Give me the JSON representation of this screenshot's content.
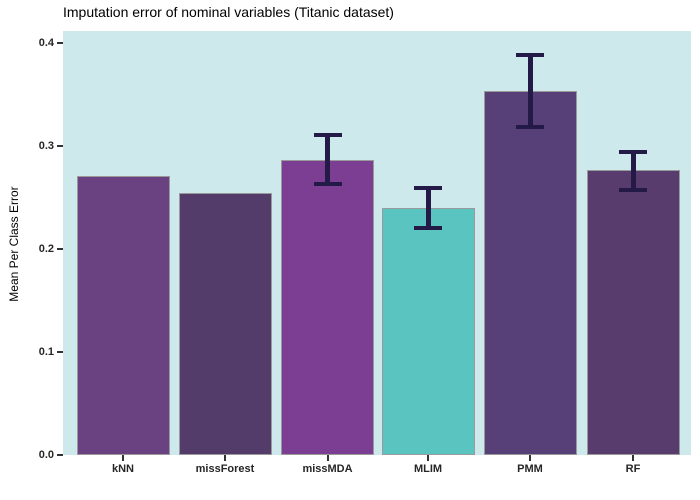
{
  "chart_data": {
    "type": "bar",
    "title": "Imputation error of nominal variables (Titanic dataset)",
    "xlabel": "",
    "ylabel": "Mean Per Class Error",
    "categories": [
      "kNN",
      "missForest",
      "missMDA",
      "MLIM",
      "PMM",
      "RF"
    ],
    "values": [
      0.271,
      0.255,
      0.287,
      0.24,
      0.354,
      0.277
    ],
    "error_bars": [
      null,
      null,
      {
        "low": 0.261,
        "high": 0.313
      },
      {
        "low": 0.219,
        "high": 0.261
      },
      {
        "low": 0.317,
        "high": 0.391
      },
      {
        "low": 0.256,
        "high": 0.296
      }
    ],
    "y_ticks": [
      0.0,
      0.1,
      0.2,
      0.3,
      0.4
    ],
    "y_tick_labels": [
      "0.0",
      "0.1",
      "0.2",
      "0.3",
      "0.4"
    ],
    "ylim": [
      0,
      0.412
    ],
    "grid": false,
    "legend_position": "none",
    "colors": {
      "bars": [
        "#6a4181",
        "#533b6a",
        "#7b3e92",
        "#5ac5c0",
        "#564077",
        "#573c6d"
      ],
      "bar_border": "#9a9a9a",
      "error_bar": "#241a47",
      "panel_background": "#cde9ec",
      "figure_background": "#ffffff",
      "axis_text": "#262626"
    }
  }
}
